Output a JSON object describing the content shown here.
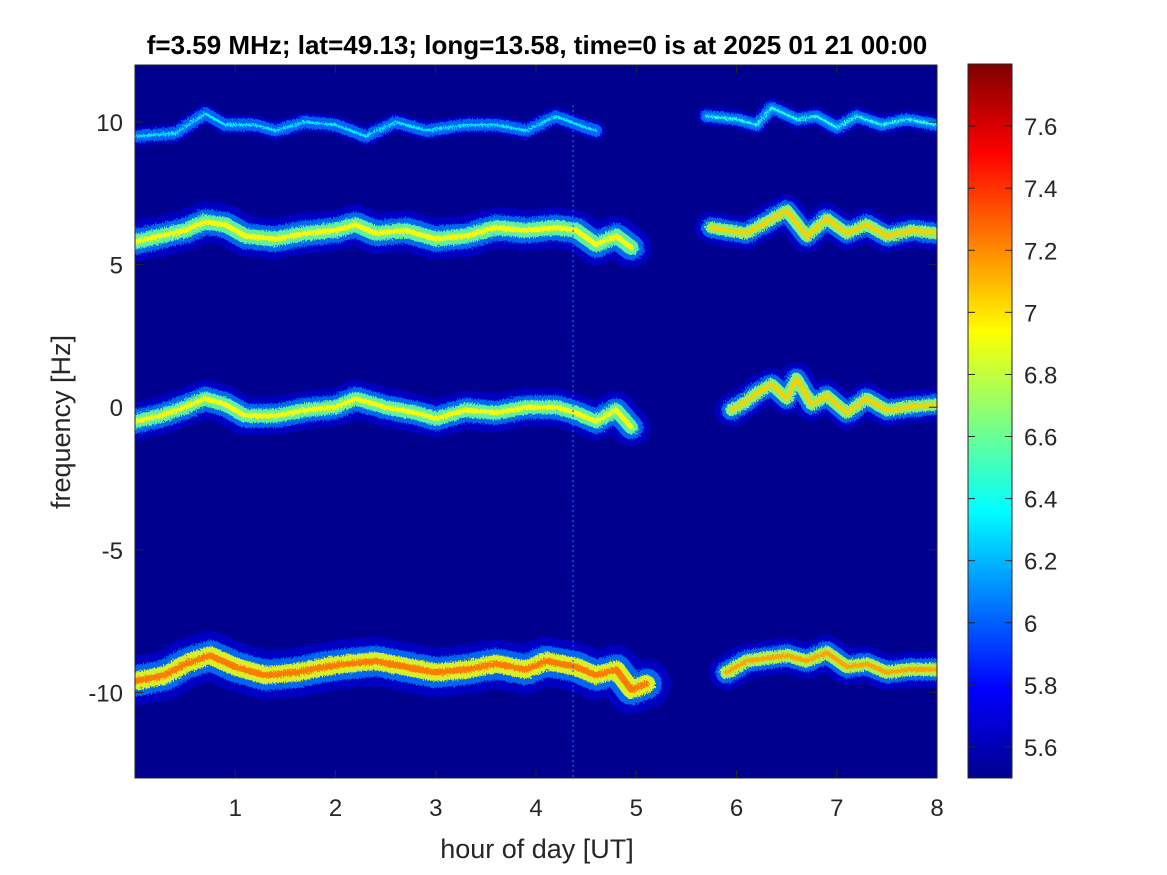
{
  "chart_data": {
    "type": "heatmap",
    "title": "f=3.59 MHz;  lat=49.13; long=13.58, time=0 is at 2025 01 21 00:00",
    "xlabel": "hour of day [UT]",
    "ylabel": "frequency [Hz]",
    "xlim": [
      0,
      8
    ],
    "ylim": [
      -13,
      12
    ],
    "x_ticks": [
      1,
      2,
      3,
      4,
      5,
      6,
      7,
      8
    ],
    "x_tick_labels": [
      "1",
      "2",
      "3",
      "4",
      "5",
      "6",
      "7",
      "8"
    ],
    "y_ticks": [
      10,
      5,
      0,
      -5,
      -10
    ],
    "y_tick_labels": [
      "10",
      "5",
      "0",
      "-5",
      "-10"
    ],
    "colormap": "jet",
    "colorbar": {
      "range": [
        5.5,
        7.8
      ],
      "ticks": [
        7.6,
        7.4,
        7.2,
        7,
        6.8,
        6.6,
        6.4,
        6.2,
        6,
        5.8,
        5.6
      ],
      "tick_labels": [
        "7.6",
        "7.4",
        "7.2",
        "7",
        "6.8",
        "6.6",
        "6.4",
        "6.2",
        "6",
        "5.8",
        "5.6"
      ]
    },
    "background_value": 5.5,
    "data_gap": [
      5.1,
      5.75
    ],
    "traces": [
      {
        "segments": [
          {
            "points": [
              [
                0,
                9.5
              ],
              [
                0.4,
                9.6
              ],
              [
                0.7,
                10.3
              ],
              [
                0.9,
                9.9
              ],
              [
                1.2,
                9.9
              ],
              [
                1.4,
                9.7
              ],
              [
                1.7,
                10.0
              ],
              [
                2.0,
                9.9
              ],
              [
                2.3,
                9.5
              ],
              [
                2.6,
                10.0
              ],
              [
                2.9,
                9.7
              ],
              [
                3.3,
                9.9
              ],
              [
                3.6,
                9.9
              ],
              [
                3.9,
                9.7
              ],
              [
                4.2,
                10.2
              ],
              [
                4.5,
                9.8
              ],
              [
                4.6,
                9.7
              ]
            ],
            "width": 0.35,
            "level": 6.0
          },
          {
            "points": [
              [
                5.7,
                10.2
              ],
              [
                6.0,
                10.1
              ],
              [
                6.2,
                9.9
              ],
              [
                6.35,
                10.5
              ],
              [
                6.6,
                10.1
              ],
              [
                6.8,
                10.2
              ],
              [
                7.0,
                9.8
              ],
              [
                7.2,
                10.2
              ],
              [
                7.45,
                9.9
              ],
              [
                7.7,
                10.1
              ],
              [
                8,
                9.9
              ]
            ],
            "width": 0.35,
            "level": 6.1
          }
        ]
      },
      {
        "segments": [
          {
            "points": [
              [
                0,
                5.8
              ],
              [
                0.25,
                6.0
              ],
              [
                0.5,
                6.2
              ],
              [
                0.7,
                6.5
              ],
              [
                0.9,
                6.4
              ],
              [
                1.1,
                6.0
              ],
              [
                1.4,
                5.9
              ],
              [
                1.7,
                6.1
              ],
              [
                2.0,
                6.2
              ],
              [
                2.2,
                6.4
              ],
              [
                2.4,
                6.1
              ],
              [
                2.7,
                6.2
              ],
              [
                3.0,
                5.9
              ],
              [
                3.3,
                6.0
              ],
              [
                3.6,
                6.3
              ],
              [
                3.9,
                6.2
              ],
              [
                4.2,
                6.3
              ],
              [
                4.4,
                6.2
              ],
              [
                4.6,
                5.7
              ],
              [
                4.8,
                6.0
              ],
              [
                4.95,
                5.6
              ]
            ],
            "width": 0.75,
            "level": 6.6
          },
          {
            "points": [
              [
                5.75,
                6.3
              ],
              [
                5.9,
                6.2
              ],
              [
                6.1,
                6.1
              ],
              [
                6.3,
                6.5
              ],
              [
                6.5,
                6.9
              ],
              [
                6.7,
                6.0
              ],
              [
                6.9,
                6.6
              ],
              [
                7.1,
                6.1
              ],
              [
                7.3,
                6.4
              ],
              [
                7.5,
                6.0
              ],
              [
                7.75,
                6.2
              ],
              [
                8,
                6.1
              ]
            ],
            "width": 0.6,
            "level": 6.7
          }
        ]
      },
      {
        "segments": [
          {
            "points": [
              [
                0,
                -0.5
              ],
              [
                0.25,
                -0.3
              ],
              [
                0.5,
                0.0
              ],
              [
                0.7,
                0.3
              ],
              [
                0.9,
                0.1
              ],
              [
                1.1,
                -0.3
              ],
              [
                1.4,
                -0.3
              ],
              [
                1.7,
                -0.1
              ],
              [
                2.0,
                0.0
              ],
              [
                2.2,
                0.3
              ],
              [
                2.5,
                0.0
              ],
              [
                2.8,
                -0.2
              ],
              [
                3.0,
                -0.4
              ],
              [
                3.3,
                -0.1
              ],
              [
                3.6,
                -0.2
              ],
              [
                3.9,
                0.0
              ],
              [
                4.2,
                0.0
              ],
              [
                4.4,
                -0.2
              ],
              [
                4.6,
                -0.5
              ],
              [
                4.8,
                -0.1
              ],
              [
                4.95,
                -0.7
              ]
            ],
            "width": 0.7,
            "level": 6.6
          },
          {
            "points": [
              [
                5.95,
                -0.1
              ],
              [
                6.1,
                0.2
              ],
              [
                6.2,
                0.5
              ],
              [
                6.35,
                0.8
              ],
              [
                6.5,
                0.3
              ],
              [
                6.6,
                1.0
              ],
              [
                6.75,
                0.1
              ],
              [
                6.9,
                0.4
              ],
              [
                7.1,
                -0.2
              ],
              [
                7.3,
                0.3
              ],
              [
                7.5,
                -0.1
              ],
              [
                7.7,
                0.0
              ],
              [
                8,
                0.1
              ]
            ],
            "width": 0.6,
            "level": 6.7
          }
        ]
      },
      {
        "segments": [
          {
            "points": [
              [
                0,
                -9.6
              ],
              [
                0.3,
                -9.4
              ],
              [
                0.5,
                -9.0
              ],
              [
                0.75,
                -8.7
              ],
              [
                1.0,
                -9.1
              ],
              [
                1.3,
                -9.4
              ],
              [
                1.6,
                -9.3
              ],
              [
                1.9,
                -9.1
              ],
              [
                2.1,
                -9.0
              ],
              [
                2.4,
                -8.9
              ],
              [
                2.7,
                -9.1
              ],
              [
                3.0,
                -9.3
              ],
              [
                3.3,
                -9.2
              ],
              [
                3.6,
                -9.0
              ],
              [
                3.9,
                -9.2
              ],
              [
                4.1,
                -8.9
              ],
              [
                4.4,
                -9.1
              ],
              [
                4.6,
                -9.4
              ],
              [
                4.8,
                -9.2
              ],
              [
                4.95,
                -9.9
              ],
              [
                5.1,
                -9.7
              ]
            ],
            "width": 0.9,
            "level": 6.9
          },
          {
            "points": [
              [
                5.9,
                -9.3
              ],
              [
                6.1,
                -8.9
              ],
              [
                6.3,
                -8.8
              ],
              [
                6.5,
                -8.7
              ],
              [
                6.7,
                -8.9
              ],
              [
                6.9,
                -8.6
              ],
              [
                7.1,
                -9.1
              ],
              [
                7.3,
                -9.0
              ],
              [
                7.5,
                -9.3
              ],
              [
                7.7,
                -9.2
              ],
              [
                8,
                -9.2
              ]
            ],
            "width": 0.65,
            "level": 6.8
          }
        ]
      }
    ]
  }
}
